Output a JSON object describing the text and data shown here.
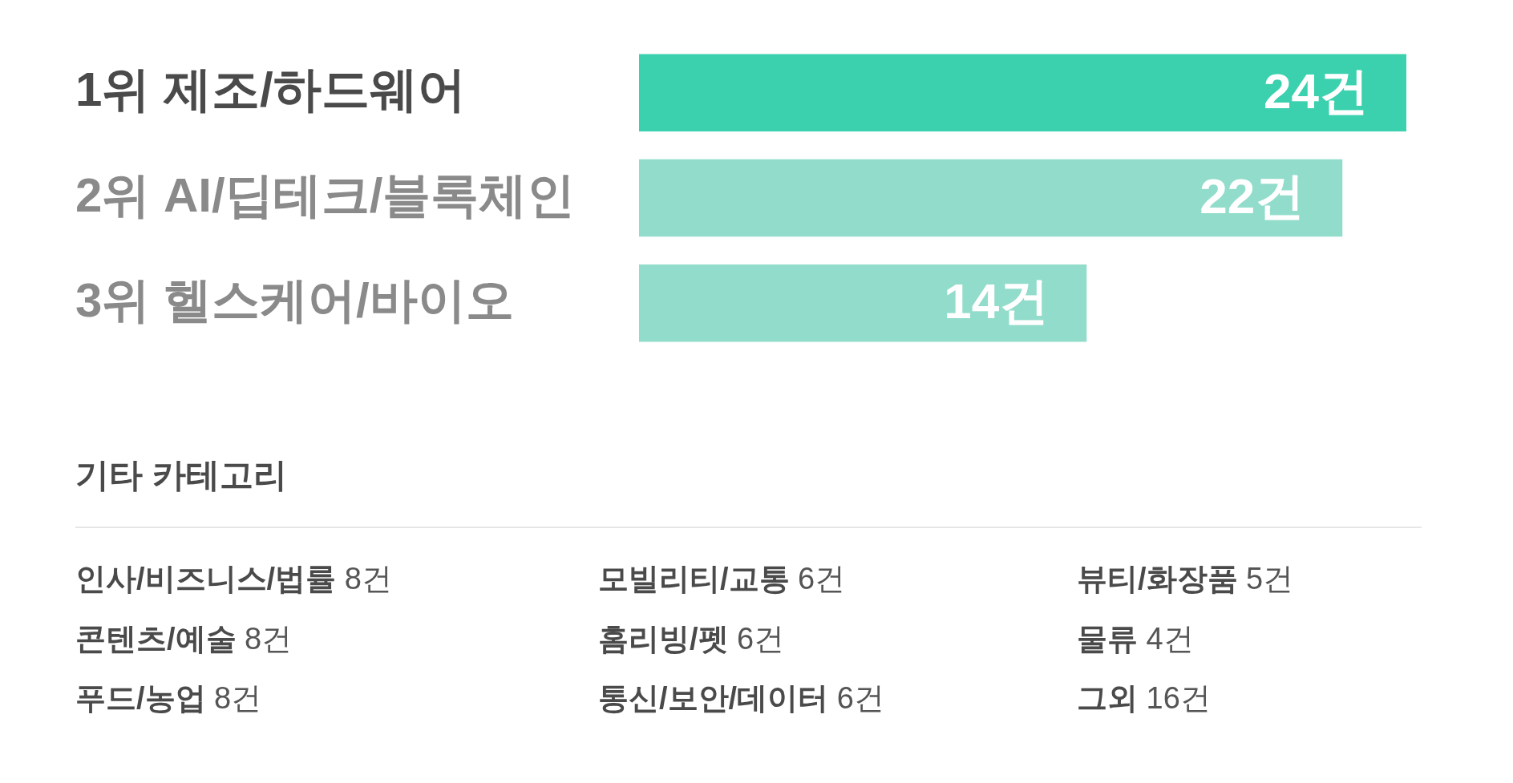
{
  "chart_data": [
    {
      "type": "bar",
      "orientation": "horizontal",
      "categories": [
        "1위 제조/하드웨어",
        "2위 AI/딥테크/블록체인",
        "3위 헬스케어/바이오"
      ],
      "values": [
        24,
        22,
        14
      ],
      "colors": [
        "#3bd1ae",
        "#91dccb",
        "#91dccb"
      ],
      "value_labels": [
        "24건",
        "22건",
        "14건"
      ]
    },
    {
      "type": "other",
      "title": "기타 카테고리",
      "annotations": [
        "인사/비즈니스/법률 8건",
        "콘텐츠/예술 8건",
        "푸드/농업 8건",
        "모빌리티/교통 6건",
        "홈리빙/펫 6건",
        "통신/보안/데이터 6건",
        "뷰티/화장품 5건",
        "물류 4건",
        "그외 16건"
      ]
    }
  ]
}
